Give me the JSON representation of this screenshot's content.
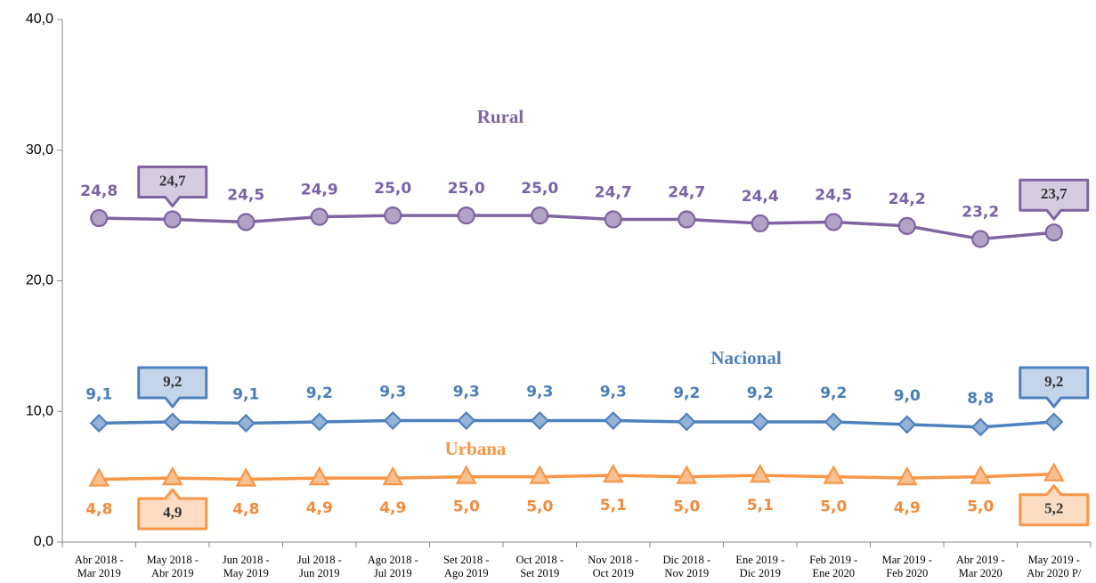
{
  "chart_data": {
    "type": "line",
    "categories": [
      "Abr 2018 -\nMar 2019",
      "May 2018 -\nAbr 2019",
      "Jun 2018 -\nMay 2019",
      "Jul 2018 -\nJun 2019",
      "Ago 2018 -\nJul 2019",
      "Set 2018 -\nAgo 2019",
      "Oct 2018 -\nSet 2019",
      "Nov 2018 -\nOct 2019",
      "Dic 2018 -\nNov 2019",
      "Ene 2019 -\nDic 2019",
      "Feb 2019 -\nEne 2020",
      "Mar 2019 -\nFeb 2020",
      "Abr 2019 -\nMar 2020",
      "May 2019 -\nAbr 2020 P/"
    ],
    "series": [
      {
        "name": "Rural",
        "color": "#8064a2",
        "marker_fill": "#b3a2c7",
        "marker": "circle",
        "values": [
          24.8,
          24.7,
          24.5,
          24.9,
          25.0,
          25.0,
          25.0,
          24.7,
          24.7,
          24.4,
          24.5,
          24.2,
          23.2,
          23.7
        ],
        "value_labels": [
          "24,8",
          "24,7",
          "24,5",
          "24,9",
          "25,0",
          "25,0",
          "25,0",
          "24,7",
          "24,7",
          "24,4",
          "24,5",
          "24,2",
          "23,2",
          "23,7"
        ]
      },
      {
        "name": "Nacional",
        "color": "#4f81bd",
        "marker_fill": "#95b3d7",
        "marker": "diamond",
        "values": [
          9.1,
          9.2,
          9.1,
          9.2,
          9.3,
          9.3,
          9.3,
          9.3,
          9.2,
          9.2,
          9.2,
          9.0,
          8.8,
          9.2
        ],
        "value_labels": [
          "9,1",
          "9,2",
          "9,1",
          "9,2",
          "9,3",
          "9,3",
          "9,3",
          "9,3",
          "9,2",
          "9,2",
          "9,2",
          "9,0",
          "8,8",
          "9,2"
        ]
      },
      {
        "name": "Urbana",
        "color": "#f79646",
        "marker_fill": "#fac090",
        "marker": "triangle",
        "values": [
          4.8,
          4.9,
          4.8,
          4.9,
          4.9,
          5.0,
          5.0,
          5.1,
          5.0,
          5.1,
          5.0,
          4.9,
          5.0,
          5.2
        ],
        "value_labels": [
          "4,8",
          "4,9",
          "4,8",
          "4,9",
          "4,9",
          "5,0",
          "5,0",
          "5,1",
          "5,0",
          "5,1",
          "5,0",
          "4,9",
          "5,0",
          "5,2"
        ]
      }
    ],
    "ylim": [
      0,
      40
    ],
    "yticks": [
      {
        "value": 0,
        "label": "0,0"
      },
      {
        "value": 10,
        "label": "10,0"
      },
      {
        "value": 20,
        "label": "20,0"
      },
      {
        "value": 30,
        "label": "30,0"
      },
      {
        "value": 40,
        "label": "40,0"
      }
    ],
    "grid": false
  }
}
